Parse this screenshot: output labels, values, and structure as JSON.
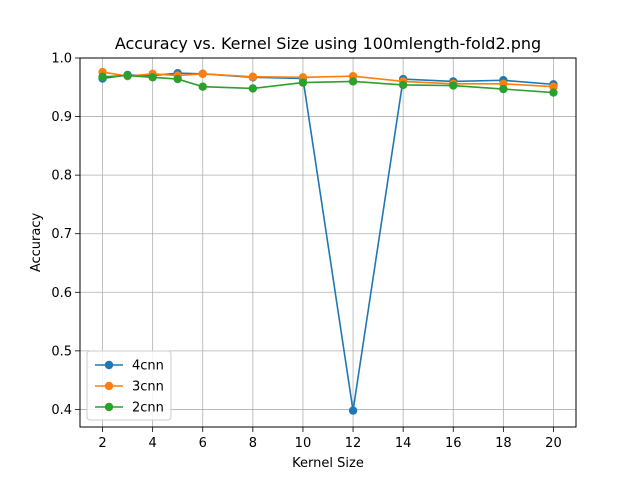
{
  "chart_data": {
    "type": "line",
    "title": "Accuracy vs. Kernel Size using 100mlength-fold2.png",
    "xlabel": "Kernel Size",
    "ylabel": "Accuracy",
    "x": [
      2,
      3,
      4,
      5,
      6,
      8,
      10,
      12,
      14,
      16,
      18,
      20
    ],
    "xlim": [
      1.1,
      20.9
    ],
    "ylim": [
      0.37,
      1.0
    ],
    "xticks": [
      "2",
      "4",
      "6",
      "8",
      "10",
      "12",
      "14",
      "16",
      "18",
      "20"
    ],
    "yticks": [
      "0.4",
      "0.5",
      "0.6",
      "0.7",
      "0.8",
      "0.9",
      "1.0"
    ],
    "grid": true,
    "legend_position": "lower-left",
    "series": [
      {
        "name": "4cnn",
        "color": "#1f77b4",
        "values": [
          0.965,
          0.971,
          0.97,
          0.974,
          0.973,
          0.967,
          0.965,
          0.398,
          0.964,
          0.96,
          0.962,
          0.955
        ]
      },
      {
        "name": "3cnn",
        "color": "#ff7f0e",
        "values": [
          0.976,
          0.969,
          0.973,
          0.97,
          0.973,
          0.968,
          0.967,
          0.969,
          0.96,
          0.956,
          0.956,
          0.951
        ]
      },
      {
        "name": "2cnn",
        "color": "#2ca02c",
        "values": [
          0.968,
          0.97,
          0.967,
          0.964,
          0.951,
          0.948,
          0.958,
          0.96,
          0.954,
          0.953,
          0.947,
          0.941
        ]
      }
    ]
  }
}
